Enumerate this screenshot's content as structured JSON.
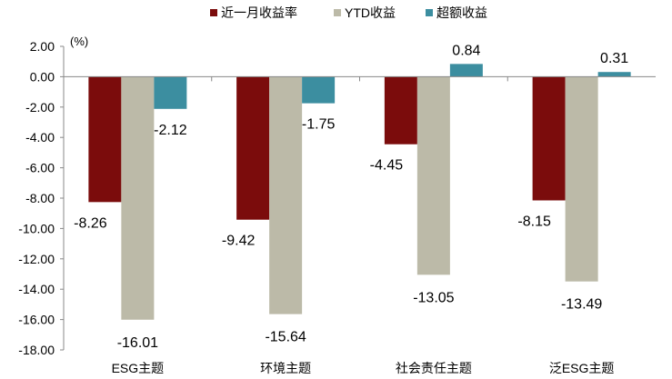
{
  "chart_data": {
    "type": "bar",
    "unit": "(%)",
    "categories": [
      "ESG主题",
      "环境主题",
      "社会责任主题",
      "泛ESG主题"
    ],
    "series": [
      {
        "name": "近一月收益率",
        "color": "#7b0c0c",
        "values": [
          -8.26,
          -9.42,
          -4.45,
          -8.15
        ]
      },
      {
        "name": "YTD收益",
        "color": "#bcbaa8",
        "values": [
          -16.01,
          -15.64,
          -13.05,
          -13.49
        ]
      },
      {
        "name": "超额收益",
        "color": "#3c8ea0",
        "values": [
          -2.12,
          -1.75,
          0.84,
          0.31
        ]
      }
    ],
    "data_labels": [
      [
        "-8.26",
        "-9.42",
        "-4.45",
        "-8.15"
      ],
      [
        "-16.01",
        "-15.64",
        "-13.05",
        "-13.49"
      ],
      [
        "-2.12",
        "-1.75",
        "0.84",
        "0.31"
      ]
    ],
    "ylim": [
      -18,
      2
    ],
    "ytick_values": [
      2,
      0,
      -2,
      -4,
      -6,
      -8,
      -10,
      -12,
      -14,
      -16,
      -18
    ],
    "ytick_labels": [
      "2.00",
      "0.00",
      "-2.00",
      "-4.00",
      "-6.00",
      "-8.00",
      "-10.00",
      "-12.00",
      "-14.00",
      "-16.00",
      "-18.00"
    ],
    "legend_position": "top-center",
    "grid": false
  }
}
